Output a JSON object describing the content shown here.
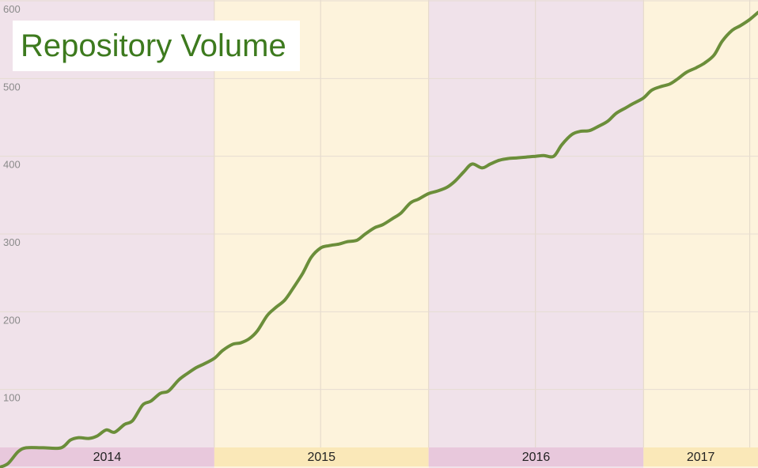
{
  "chart_data": {
    "type": "line",
    "title": "Repository Volume",
    "xlabel": "",
    "ylabel": "",
    "ylim": [
      0,
      600
    ],
    "y_ticks": [
      "100",
      "200",
      "300",
      "400",
      "500",
      "600"
    ],
    "grid": true,
    "legend": "none",
    "x_range": [
      "2014-01-01",
      "2017-07-15"
    ],
    "year_bands": [
      {
        "label": "2014",
        "start": "2014-01-01",
        "end": "2015-01-01",
        "color": "#f0e2ea",
        "strip_color": "#e8c8dc"
      },
      {
        "label": "2015",
        "start": "2015-01-01",
        "end": "2016-01-01",
        "color": "#fdf3dc",
        "strip_color": "#fae8b8"
      },
      {
        "label": "2016",
        "start": "2016-01-01",
        "end": "2017-01-01",
        "color": "#f0e2ea",
        "strip_color": "#e8c8dc"
      },
      {
        "label": "2017",
        "start": "2017-01-01",
        "end": "2017-07-15",
        "color": "#fdf3dc",
        "strip_color": "#fae8b8"
      }
    ],
    "series": [
      {
        "color": "#6b8e3a",
        "x": [
          "2014-01-01",
          "2014-01-15",
          "2014-02-01",
          "2014-02-15",
          "2014-03-15",
          "2014-04-15",
          "2014-05-01",
          "2014-05-15",
          "2014-06-01",
          "2014-06-15",
          "2014-07-01",
          "2014-07-15",
          "2014-08-01",
          "2014-08-15",
          "2014-09-01",
          "2014-09-15",
          "2014-10-01",
          "2014-10-15",
          "2014-11-01",
          "2014-11-15",
          "2014-12-01",
          "2014-12-15",
          "2015-01-01",
          "2015-01-15",
          "2015-02-01",
          "2015-02-15",
          "2015-03-01",
          "2015-03-15",
          "2015-04-01",
          "2015-04-15",
          "2015-05-01",
          "2015-05-15",
          "2015-06-01",
          "2015-06-15",
          "2015-07-01",
          "2015-07-15",
          "2015-08-01",
          "2015-08-15",
          "2015-09-01",
          "2015-09-15",
          "2015-10-01",
          "2015-10-15",
          "2015-11-01",
          "2015-11-15",
          "2015-12-01",
          "2015-12-15",
          "2016-01-01",
          "2016-01-15",
          "2016-02-01",
          "2016-02-15",
          "2016-03-01",
          "2016-03-15",
          "2016-04-01",
          "2016-04-15",
          "2016-05-01",
          "2016-05-15",
          "2016-06-01",
          "2016-06-15",
          "2016-07-01",
          "2016-07-15",
          "2016-08-01",
          "2016-08-15",
          "2016-09-01",
          "2016-09-15",
          "2016-10-01",
          "2016-10-15",
          "2016-11-01",
          "2016-11-15",
          "2016-12-01",
          "2016-12-15",
          "2017-01-01",
          "2017-01-15",
          "2017-02-01",
          "2017-02-15",
          "2017-03-01",
          "2017-03-15",
          "2017-04-01",
          "2017-04-15",
          "2017-05-01",
          "2017-05-15",
          "2017-06-01",
          "2017-06-15",
          "2017-07-01",
          "2017-07-15"
        ],
        "values": [
          0,
          5,
          20,
          25,
          25,
          25,
          35,
          38,
          37,
          40,
          48,
          45,
          55,
          60,
          80,
          85,
          95,
          98,
          112,
          120,
          128,
          133,
          140,
          150,
          158,
          160,
          165,
          175,
          195,
          205,
          215,
          230,
          250,
          270,
          282,
          285,
          287,
          290,
          292,
          300,
          308,
          312,
          320,
          327,
          340,
          345,
          352,
          355,
          360,
          368,
          380,
          390,
          385,
          390,
          395,
          397,
          398,
          399,
          400,
          401,
          400,
          415,
          428,
          432,
          433,
          438,
          445,
          455,
          462,
          468,
          475,
          485,
          490,
          493,
          500,
          508,
          514,
          520,
          530,
          548,
          562,
          568,
          576,
          585
        ]
      }
    ]
  },
  "title_color": "#3d7a1e"
}
